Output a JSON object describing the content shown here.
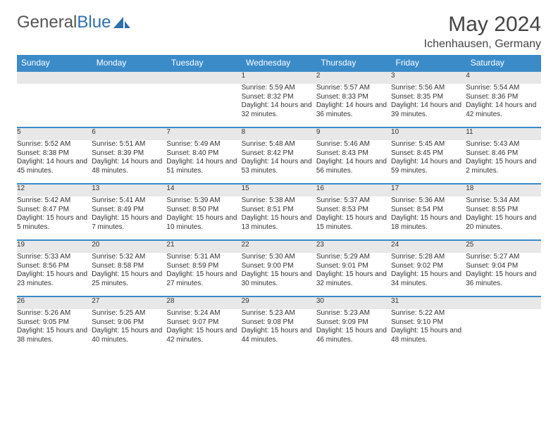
{
  "logo": {
    "text1": "General",
    "text2": "Blue"
  },
  "title": "May 2024",
  "location": "Ichenhausen, Germany",
  "day_headers": [
    "Sunday",
    "Monday",
    "Tuesday",
    "Wednesday",
    "Thursday",
    "Friday",
    "Saturday"
  ],
  "colors": {
    "header_bg": "#3b8bc9",
    "header_text": "#ffffff",
    "row_border": "#3b8bc9",
    "daynum_bg": "#e8e8e8",
    "text": "#333333",
    "logo_gray": "#555555",
    "logo_blue": "#2f6fab"
  },
  "weeks": [
    [
      {
        "n": "",
        "sr": "",
        "ss": "",
        "dl": ""
      },
      {
        "n": "",
        "sr": "",
        "ss": "",
        "dl": ""
      },
      {
        "n": "",
        "sr": "",
        "ss": "",
        "dl": ""
      },
      {
        "n": "1",
        "sr": "Sunrise: 5:59 AM",
        "ss": "Sunset: 8:32 PM",
        "dl": "Daylight: 14 hours and 32 minutes."
      },
      {
        "n": "2",
        "sr": "Sunrise: 5:57 AM",
        "ss": "Sunset: 8:33 PM",
        "dl": "Daylight: 14 hours and 36 minutes."
      },
      {
        "n": "3",
        "sr": "Sunrise: 5:56 AM",
        "ss": "Sunset: 8:35 PM",
        "dl": "Daylight: 14 hours and 39 minutes."
      },
      {
        "n": "4",
        "sr": "Sunrise: 5:54 AM",
        "ss": "Sunset: 8:36 PM",
        "dl": "Daylight: 14 hours and 42 minutes."
      }
    ],
    [
      {
        "n": "5",
        "sr": "Sunrise: 5:52 AM",
        "ss": "Sunset: 8:38 PM",
        "dl": "Daylight: 14 hours and 45 minutes."
      },
      {
        "n": "6",
        "sr": "Sunrise: 5:51 AM",
        "ss": "Sunset: 8:39 PM",
        "dl": "Daylight: 14 hours and 48 minutes."
      },
      {
        "n": "7",
        "sr": "Sunrise: 5:49 AM",
        "ss": "Sunset: 8:40 PM",
        "dl": "Daylight: 14 hours and 51 minutes."
      },
      {
        "n": "8",
        "sr": "Sunrise: 5:48 AM",
        "ss": "Sunset: 8:42 PM",
        "dl": "Daylight: 14 hours and 53 minutes."
      },
      {
        "n": "9",
        "sr": "Sunrise: 5:46 AM",
        "ss": "Sunset: 8:43 PM",
        "dl": "Daylight: 14 hours and 56 minutes."
      },
      {
        "n": "10",
        "sr": "Sunrise: 5:45 AM",
        "ss": "Sunset: 8:45 PM",
        "dl": "Daylight: 14 hours and 59 minutes."
      },
      {
        "n": "11",
        "sr": "Sunrise: 5:43 AM",
        "ss": "Sunset: 8:46 PM",
        "dl": "Daylight: 15 hours and 2 minutes."
      }
    ],
    [
      {
        "n": "12",
        "sr": "Sunrise: 5:42 AM",
        "ss": "Sunset: 8:47 PM",
        "dl": "Daylight: 15 hours and 5 minutes."
      },
      {
        "n": "13",
        "sr": "Sunrise: 5:41 AM",
        "ss": "Sunset: 8:49 PM",
        "dl": "Daylight: 15 hours and 7 minutes."
      },
      {
        "n": "14",
        "sr": "Sunrise: 5:39 AM",
        "ss": "Sunset: 8:50 PM",
        "dl": "Daylight: 15 hours and 10 minutes."
      },
      {
        "n": "15",
        "sr": "Sunrise: 5:38 AM",
        "ss": "Sunset: 8:51 PM",
        "dl": "Daylight: 15 hours and 13 minutes."
      },
      {
        "n": "16",
        "sr": "Sunrise: 5:37 AM",
        "ss": "Sunset: 8:53 PM",
        "dl": "Daylight: 15 hours and 15 minutes."
      },
      {
        "n": "17",
        "sr": "Sunrise: 5:36 AM",
        "ss": "Sunset: 8:54 PM",
        "dl": "Daylight: 15 hours and 18 minutes."
      },
      {
        "n": "18",
        "sr": "Sunrise: 5:34 AM",
        "ss": "Sunset: 8:55 PM",
        "dl": "Daylight: 15 hours and 20 minutes."
      }
    ],
    [
      {
        "n": "19",
        "sr": "Sunrise: 5:33 AM",
        "ss": "Sunset: 8:56 PM",
        "dl": "Daylight: 15 hours and 23 minutes."
      },
      {
        "n": "20",
        "sr": "Sunrise: 5:32 AM",
        "ss": "Sunset: 8:58 PM",
        "dl": "Daylight: 15 hours and 25 minutes."
      },
      {
        "n": "21",
        "sr": "Sunrise: 5:31 AM",
        "ss": "Sunset: 8:59 PM",
        "dl": "Daylight: 15 hours and 27 minutes."
      },
      {
        "n": "22",
        "sr": "Sunrise: 5:30 AM",
        "ss": "Sunset: 9:00 PM",
        "dl": "Daylight: 15 hours and 30 minutes."
      },
      {
        "n": "23",
        "sr": "Sunrise: 5:29 AM",
        "ss": "Sunset: 9:01 PM",
        "dl": "Daylight: 15 hours and 32 minutes."
      },
      {
        "n": "24",
        "sr": "Sunrise: 5:28 AM",
        "ss": "Sunset: 9:02 PM",
        "dl": "Daylight: 15 hours and 34 minutes."
      },
      {
        "n": "25",
        "sr": "Sunrise: 5:27 AM",
        "ss": "Sunset: 9:04 PM",
        "dl": "Daylight: 15 hours and 36 minutes."
      }
    ],
    [
      {
        "n": "26",
        "sr": "Sunrise: 5:26 AM",
        "ss": "Sunset: 9:05 PM",
        "dl": "Daylight: 15 hours and 38 minutes."
      },
      {
        "n": "27",
        "sr": "Sunrise: 5:25 AM",
        "ss": "Sunset: 9:06 PM",
        "dl": "Daylight: 15 hours and 40 minutes."
      },
      {
        "n": "28",
        "sr": "Sunrise: 5:24 AM",
        "ss": "Sunset: 9:07 PM",
        "dl": "Daylight: 15 hours and 42 minutes."
      },
      {
        "n": "29",
        "sr": "Sunrise: 5:23 AM",
        "ss": "Sunset: 9:08 PM",
        "dl": "Daylight: 15 hours and 44 minutes."
      },
      {
        "n": "30",
        "sr": "Sunrise: 5:23 AM",
        "ss": "Sunset: 9:09 PM",
        "dl": "Daylight: 15 hours and 46 minutes."
      },
      {
        "n": "31",
        "sr": "Sunrise: 5:22 AM",
        "ss": "Sunset: 9:10 PM",
        "dl": "Daylight: 15 hours and 48 minutes."
      },
      {
        "n": "",
        "sr": "",
        "ss": "",
        "dl": ""
      }
    ]
  ]
}
